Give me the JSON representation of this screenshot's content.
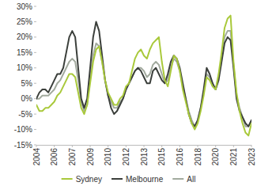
{
  "chart_data": {
    "type": "line",
    "categories": [
      "2004",
      null,
      null,
      null,
      null,
      null,
      "2006",
      null,
      null,
      null,
      null,
      null,
      "2007",
      null,
      null,
      null,
      null,
      null,
      "2009",
      null,
      null,
      null,
      null,
      null,
      "2010",
      null,
      null,
      null,
      null,
      null,
      "2012",
      null,
      null,
      null,
      null,
      null,
      "2013",
      null,
      null,
      null,
      null,
      null,
      "2015",
      null,
      null,
      null,
      null,
      null,
      "2016",
      null,
      null,
      null,
      null,
      null,
      "2018",
      null,
      null,
      null,
      null,
      null,
      "2020",
      null,
      null,
      null,
      null,
      null,
      "2021",
      null,
      null,
      null,
      null,
      null,
      "2023"
    ],
    "series": [
      {
        "name": "Sydney",
        "color": "#a9c93b",
        "values": [
          -2,
          -4,
          -4,
          -3,
          -3,
          -2,
          -1,
          1,
          2,
          4,
          6,
          8,
          8,
          7,
          2,
          -3,
          -5,
          -2,
          5,
          12,
          16,
          17,
          12,
          6,
          2,
          0,
          -2,
          -2,
          0,
          1,
          4,
          5,
          9,
          13,
          15,
          16,
          14,
          13,
          16,
          18,
          19,
          20,
          12,
          6,
          4,
          9,
          14,
          13,
          9,
          3,
          -1,
          -5,
          -8,
          -10,
          -8,
          -4,
          1,
          7,
          6,
          4,
          3,
          8,
          15,
          23,
          26,
          27,
          12,
          2,
          -4,
          -8,
          -11,
          -12,
          -8
        ]
      },
      {
        "name": "Melbourne",
        "color": "#3b3f3b",
        "values": [
          0,
          2,
          3,
          3,
          2,
          4,
          6,
          8,
          8,
          10,
          15,
          20,
          22,
          20,
          10,
          0,
          -3,
          0,
          10,
          20,
          25,
          22,
          14,
          6,
          1,
          -3,
          -5,
          -4,
          -2,
          0,
          3,
          5,
          7,
          9,
          10,
          9,
          7,
          5,
          5,
          9,
          10,
          8,
          6,
          5,
          8,
          12,
          14,
          13,
          10,
          5,
          0,
          -5,
          -8,
          -9,
          -7,
          -3,
          3,
          10,
          8,
          5,
          3,
          6,
          12,
          18,
          20,
          19,
          10,
          0,
          -4,
          -6,
          -8,
          -9,
          -7
        ]
      },
      {
        "name": "All",
        "color": "#a2aa9e",
        "values": [
          0,
          0,
          1,
          1,
          1,
          2,
          3,
          5,
          6,
          8,
          10,
          12,
          13,
          12,
          6,
          -1,
          -4,
          -2,
          7,
          14,
          18,
          17,
          12,
          6,
          1,
          -1,
          -3,
          -3,
          -1,
          0,
          3,
          5,
          7,
          9,
          10,
          10,
          9,
          7,
          8,
          11,
          12,
          11,
          8,
          5,
          6,
          10,
          13,
          12,
          9,
          4,
          0,
          -4,
          -7,
          -9,
          -7,
          -3,
          2,
          8,
          7,
          4,
          3,
          7,
          13,
          20,
          22,
          22,
          11,
          1,
          -3,
          -6,
          -9,
          -9,
          -7
        ]
      }
    ],
    "ylim": [
      -15,
      30
    ],
    "yticks": [
      {
        "value": -15,
        "label": "-15%"
      },
      {
        "value": -10,
        "label": "-10%"
      },
      {
        "value": -5,
        "label": "-5%"
      },
      {
        "value": 0,
        "label": "0%"
      },
      {
        "value": 5,
        "label": "5%"
      },
      {
        "value": 10,
        "label": "10%"
      },
      {
        "value": 15,
        "label": "15%"
      },
      {
        "value": 20,
        "label": "20%"
      },
      {
        "value": 25,
        "label": "25%"
      },
      {
        "value": 30,
        "label": "30%"
      }
    ],
    "grid": false,
    "legend": "bottom"
  }
}
